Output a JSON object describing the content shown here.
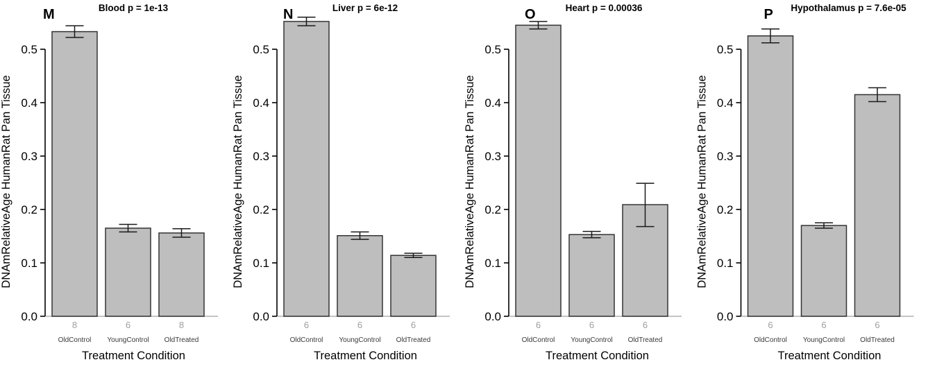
{
  "figure": {
    "y_axis_label": "DNAmRelativeAge HumanRat Pan Tissue",
    "x_axis_label": "Treatment Condition",
    "categories": [
      "OldControl",
      "YoungControl",
      "OldTreated"
    ],
    "y_ticks": [
      "0.0",
      "0.1",
      "0.2",
      "0.3",
      "0.4",
      "0.5"
    ],
    "colors": {
      "bar_fill": "#bebebe",
      "bar_stroke": "#333333",
      "error_bar": "#1a1a1a",
      "axis": "#000000",
      "baseline": "#b0b0b0",
      "count_text": "#9e9e9e",
      "category_text": "#3a3a3a",
      "title_text": "#000000"
    }
  },
  "chart_data": [
    {
      "type": "bar",
      "panel_letter": "M",
      "title": "Blood p = 1e-13",
      "tissue": "Blood",
      "p_value": "1e-13",
      "categories": [
        "OldControl",
        "YoungControl",
        "OldTreated"
      ],
      "values": [
        0.533,
        0.165,
        0.156
      ],
      "error_high": [
        0.544,
        0.172,
        0.164
      ],
      "error_low": [
        0.522,
        0.158,
        0.148
      ],
      "counts": [
        8,
        6,
        8
      ],
      "xlabel": "Treatment Condition",
      "ylabel": "DNAmRelativeAge HumanRat Pan Tissue",
      "ylim": [
        0,
        0.56
      ],
      "grid": false,
      "legend": false
    },
    {
      "type": "bar",
      "panel_letter": "N",
      "title": "Liver p = 6e-12",
      "tissue": "Liver",
      "p_value": "6e-12",
      "categories": [
        "OldControl",
        "YoungControl",
        "OldTreated"
      ],
      "values": [
        0.552,
        0.151,
        0.114
      ],
      "error_high": [
        0.56,
        0.158,
        0.118
      ],
      "error_low": [
        0.544,
        0.144,
        0.11
      ],
      "counts": [
        6,
        6,
        6
      ],
      "xlabel": "Treatment Condition",
      "ylabel": "DNAmRelativeAge HumanRat Pan Tissue",
      "ylim": [
        0,
        0.56
      ],
      "grid": false,
      "legend": false
    },
    {
      "type": "bar",
      "panel_letter": "O",
      "title": "Heart p = 0.00036",
      "tissue": "Heart",
      "p_value": "0.00036",
      "categories": [
        "OldControl",
        "YoungControl",
        "OldTreated"
      ],
      "values": [
        0.545,
        0.153,
        0.209
      ],
      "error_high": [
        0.552,
        0.159,
        0.249
      ],
      "error_low": [
        0.538,
        0.147,
        0.168
      ],
      "counts": [
        6,
        6,
        6
      ],
      "xlabel": "Treatment Condition",
      "ylabel": "DNAmRelativeAge HumanRat Pan Tissue",
      "ylim": [
        0,
        0.56
      ],
      "grid": false,
      "legend": false
    },
    {
      "type": "bar",
      "panel_letter": "P",
      "title": "Hypothalamus p = 7.6e-05",
      "tissue": "Hypothalamus",
      "p_value": "7.6e-05",
      "categories": [
        "OldControl",
        "YoungControl",
        "OldTreated"
      ],
      "values": [
        0.525,
        0.17,
        0.415
      ],
      "error_high": [
        0.538,
        0.175,
        0.428
      ],
      "error_low": [
        0.512,
        0.165,
        0.402
      ],
      "counts": [
        6,
        6,
        6
      ],
      "xlabel": "Treatment Condition",
      "ylabel": "DNAmRelativeAge HumanRat Pan Tissue",
      "ylim": [
        0,
        0.56
      ],
      "grid": false,
      "legend": false
    }
  ]
}
